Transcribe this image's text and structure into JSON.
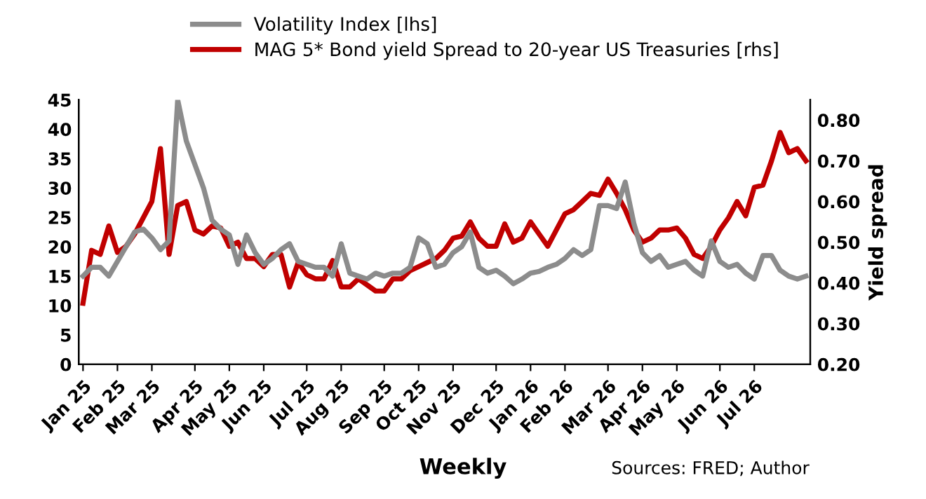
{
  "chart_data": {
    "type": "line",
    "categories": [
      "Jan 25",
      null,
      null,
      null,
      "Feb 25",
      null,
      null,
      null,
      "Mar 25",
      null,
      null,
      null,
      null,
      "Apr 25",
      null,
      null,
      null,
      "May 25",
      null,
      null,
      null,
      "Jun 25",
      null,
      null,
      null,
      null,
      "Jul 25",
      null,
      null,
      null,
      "Aug 25",
      null,
      null,
      null,
      null,
      "Sep 25",
      null,
      null,
      null,
      "Oct 25",
      null,
      null,
      null,
      "Nov 25",
      null,
      null,
      null,
      null,
      "Dec 25",
      null,
      null,
      null,
      "Jan 26",
      null,
      null,
      null,
      "Feb 26",
      null,
      null,
      null,
      null,
      "Mar 26",
      null,
      null,
      null,
      "Apr 26",
      null,
      null,
      null,
      "May 26",
      null,
      null,
      null,
      null,
      "Jun 26",
      null,
      null,
      null,
      "Jul 26",
      null,
      null,
      null,
      null,
      null,
      null
    ],
    "series": [
      {
        "name": "Volatility Index [lhs]",
        "color": "#8c8c8c",
        "values": [
          15,
          16.5,
          16.5,
          15,
          17.5,
          20,
          22.5,
          23,
          21.5,
          19.5,
          21,
          45,
          38,
          34,
          30,
          24.5,
          23,
          22,
          17,
          22,
          19,
          17,
          18,
          19.5,
          20.5,
          17.5,
          17,
          16.5,
          16.5,
          15,
          20.5,
          15.5,
          15,
          14.5,
          15.5,
          15,
          15.5,
          15.5,
          16.5,
          21.5,
          20.5,
          16.5,
          17,
          19,
          20,
          22.5,
          16.5,
          15.5,
          16,
          15,
          13.7,
          14.5,
          15.5,
          15.8,
          16.5,
          17,
          18,
          19.5,
          18.5,
          19.5,
          27,
          27,
          26.5,
          31,
          24,
          19,
          17.5,
          18.5,
          16.5,
          17,
          17.5,
          16,
          15,
          21,
          17.5,
          16.5,
          17,
          15.5,
          14.5,
          18.5,
          18.5,
          16,
          15,
          14.5,
          15
        ]
      },
      {
        "name": "MAG 5* Bond yield Spread to 20-year US Treasuries [rhs]",
        "color": "#c00000",
        "axis": "y2",
        "values": [
          0.35,
          0.48,
          0.47,
          0.54,
          0.475,
          0.49,
          0.52,
          0.56,
          0.6,
          0.73,
          0.47,
          0.59,
          0.6,
          0.53,
          0.52,
          0.54,
          0.535,
          0.49,
          0.5,
          0.46,
          0.46,
          0.44,
          0.47,
          0.47,
          0.39,
          0.45,
          0.42,
          0.41,
          0.41,
          0.455,
          0.39,
          0.39,
          0.41,
          0.395,
          0.38,
          0.38,
          0.41,
          0.41,
          0.43,
          0.44,
          0.45,
          0.46,
          0.48,
          0.51,
          0.515,
          0.55,
          0.51,
          0.49,
          0.49,
          0.545,
          0.5,
          0.51,
          0.55,
          0.52,
          0.49,
          0.53,
          0.57,
          0.58,
          0.6,
          0.62,
          0.615,
          0.655,
          0.62,
          0.58,
          0.53,
          0.5,
          0.51,
          0.53,
          0.53,
          0.535,
          0.51,
          0.47,
          0.46,
          0.49,
          0.53,
          0.56,
          0.6,
          0.565,
          0.635,
          0.64,
          0.7,
          0.77,
          0.72,
          0.73,
          0.7
        ]
      }
    ],
    "ylim": [
      0,
      45
    ],
    "yticks": [
      0,
      5,
      10,
      15,
      20,
      25,
      30,
      35,
      40,
      45
    ],
    "y2lim": [
      0.2,
      0.85
    ],
    "y2ticks": [
      {
        "value": 0.2,
        "label": "0.20"
      },
      {
        "value": 0.3,
        "label": "0.30"
      },
      {
        "value": 0.4,
        "label": "0.40"
      },
      {
        "value": 0.5,
        "label": "0.50"
      },
      {
        "value": 0.6,
        "label": "0.60"
      },
      {
        "value": 0.7,
        "label": "0.70"
      },
      {
        "value": 0.8,
        "label": "0.80"
      }
    ],
    "xlabel": "Weekly",
    "y2label": "Yield spread",
    "annotations": [
      "Sources: FRED; Author"
    ],
    "legend": "top",
    "grid": false,
    "marker": "none",
    "line_style": "solid"
  }
}
